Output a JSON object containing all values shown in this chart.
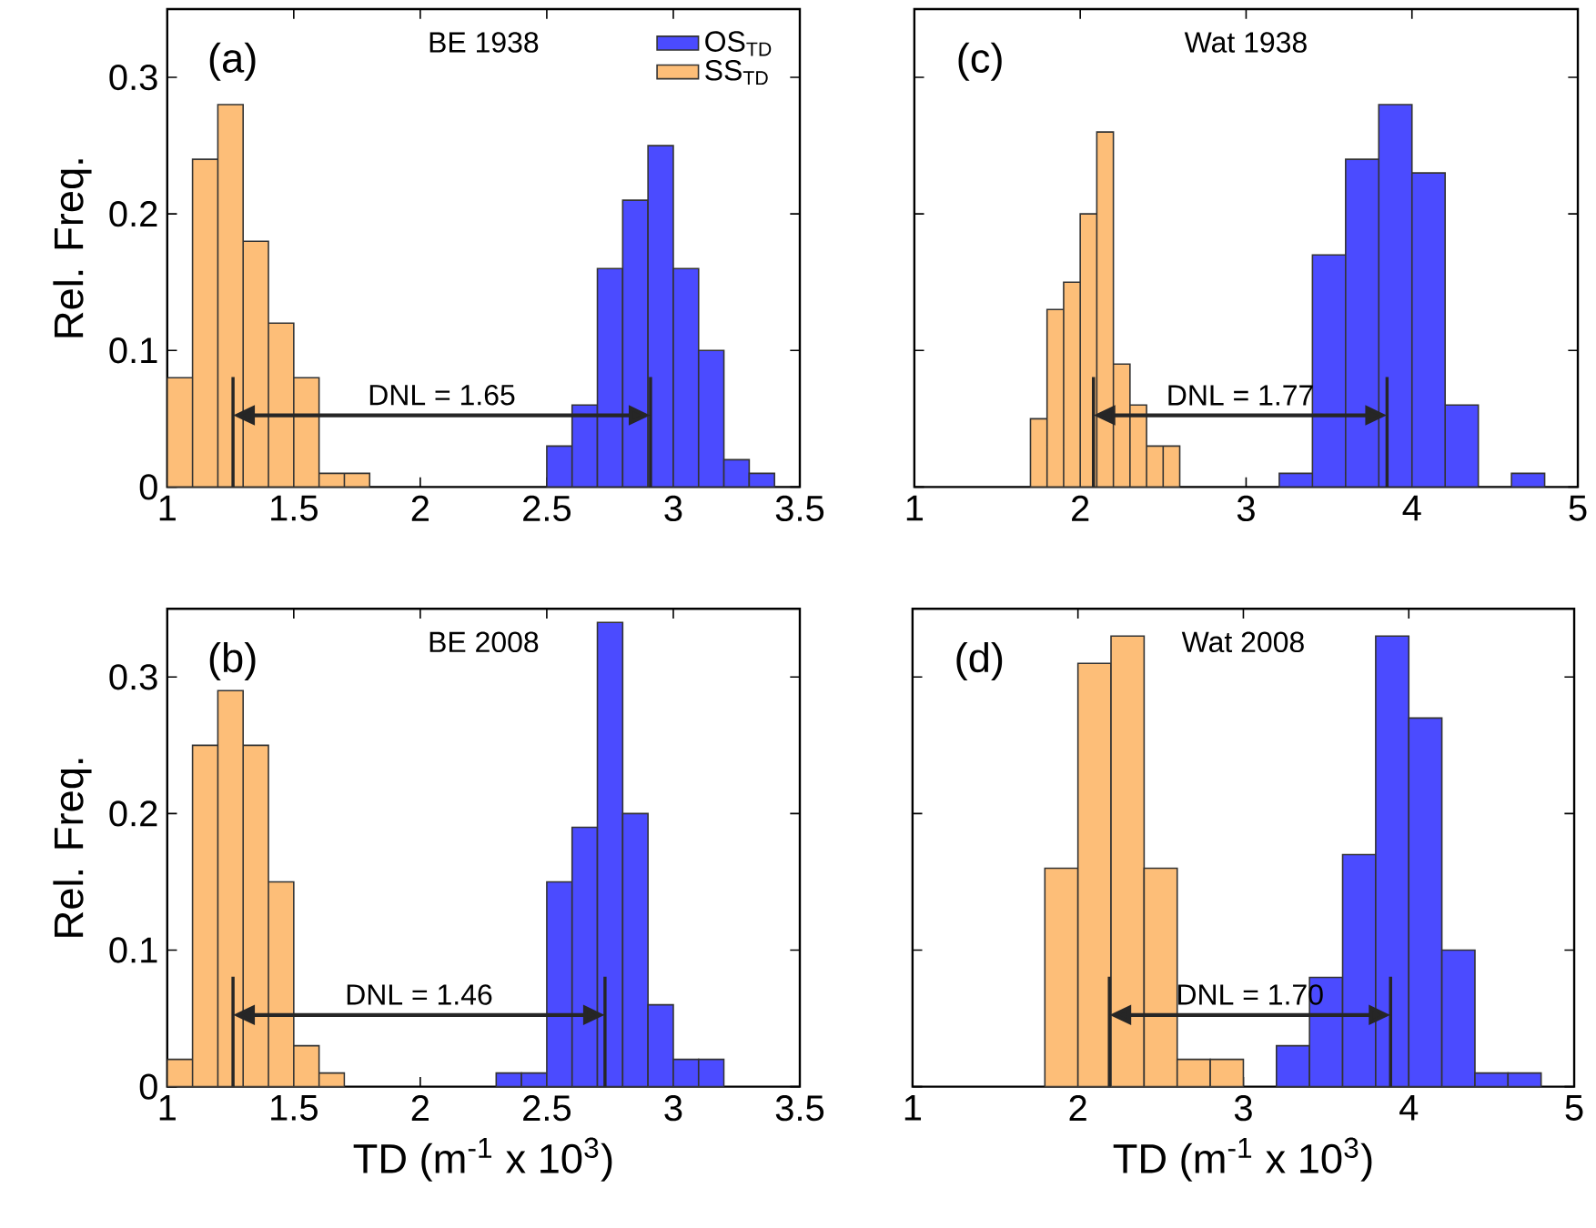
{
  "chart_data": [
    {
      "type": "bar",
      "title": "BE 1938",
      "ylabel": "Rel. Freq.",
      "annotations": [
        "(a)",
        "DNL = 1.65"
      ],
      "series": [
        {
          "name": "OS$_{TD}$",
          "color": "#4b4bff",
          "x": [
            2.55,
            2.65,
            2.75,
            2.85,
            2.95,
            3.05,
            3.15,
            3.25,
            3.35
          ],
          "values": [
            0.03,
            0.06,
            0.16,
            0.21,
            0.25,
            0.16,
            0.1,
            0.02,
            0.01
          ]
        },
        {
          "name": "SS$_{TD}$",
          "color": "#fdbe78",
          "x": [
            1.05,
            1.15,
            1.25,
            1.35,
            1.45,
            1.55,
            1.65,
            1.75
          ],
          "values": [
            0.08,
            0.24,
            0.28,
            0.18,
            0.12,
            0.08,
            0.01,
            0.01
          ]
        }
      ],
      "ref_lines": [
        {
          "axis": "x",
          "value": 1.26
        },
        {
          "axis": "x",
          "value": 2.91
        }
      ],
      "xlim": [
        1,
        3.5
      ],
      "ylim": [
        0,
        0.35
      ],
      "xticks": [
        1,
        1.5,
        2,
        2.5,
        3,
        3.5
      ],
      "yticks": [
        0,
        0.1,
        0.2,
        0.3
      ],
      "legend": "top right"
    },
    {
      "type": "bar",
      "title": "Wat 1938",
      "annotations": [
        "(c)",
        "DNL = 1.77"
      ],
      "series": [
        {
          "color": "#4b4bff",
          "x": [
            3.3,
            3.5,
            3.7,
            3.9,
            4.1,
            4.3,
            4.5,
            4.7
          ],
          "values": [
            0.01,
            0.17,
            0.24,
            0.28,
            0.23,
            0.06,
            0,
            0.01
          ]
        },
        {
          "color": "#fdbe78",
          "x": [
            1.75,
            1.85,
            1.95,
            2.05,
            2.15,
            2.25,
            2.35,
            2.45,
            2.55
          ],
          "values": [
            0.05,
            0.13,
            0.15,
            0.2,
            0.26,
            0.09,
            0.06,
            0.03,
            0.03
          ]
        }
      ],
      "ref_lines": [
        {
          "axis": "x",
          "value": 2.08
        },
        {
          "axis": "x",
          "value": 3.85
        }
      ],
      "xlim": [
        1,
        5
      ],
      "ylim": [
        0,
        0.35
      ],
      "xticks": [
        1,
        2,
        3,
        4,
        5
      ],
      "yticks": [
        0,
        0.1,
        0.2,
        0.3
      ],
      "tick_labels": "x"
    },
    {
      "type": "bar",
      "title": "BE 2008",
      "ylabel": "Rel. Freq.",
      "xlabel": "TD (m$^{-1}$ x 10$^{3}$)",
      "annotations": [
        "(b)",
        "DNL = 1.46"
      ],
      "series": [
        {
          "color": "#4b4bff",
          "x": [
            2.35,
            2.45,
            2.55,
            2.65,
            2.75,
            2.85,
            2.95,
            3.05,
            3.15
          ],
          "values": [
            0.01,
            0.01,
            0.15,
            0.19,
            0.34,
            0.2,
            0.06,
            0.02,
            0.02
          ]
        },
        {
          "color": "#fdbe78",
          "x": [
            1.05,
            1.15,
            1.25,
            1.35,
            1.45,
            1.55,
            1.65
          ],
          "values": [
            0.02,
            0.25,
            0.29,
            0.25,
            0.15,
            0.03,
            0.01
          ]
        }
      ],
      "ref_lines": [
        {
          "axis": "x",
          "value": 1.26
        },
        {
          "axis": "x",
          "value": 2.73
        }
      ],
      "xlim": [
        1,
        3.5
      ],
      "ylim": [
        0,
        0.35
      ],
      "xticks": [
        1,
        1.5,
        2,
        2.5,
        3,
        3.5
      ],
      "yticks": [
        0,
        0.1,
        0.2,
        0.3
      ]
    },
    {
      "type": "bar",
      "title": "Wat 2008",
      "xlabel": "TD (m$^{-1}$ x 10$^{3}$)",
      "annotations": [
        "(d)",
        "DNL = 1.70"
      ],
      "series": [
        {
          "color": "#4b4bff",
          "x": [
            3.3,
            3.5,
            3.7,
            3.9,
            4.1,
            4.3,
            4.5,
            4.7
          ],
          "values": [
            0.03,
            0.08,
            0.17,
            0.33,
            0.27,
            0.1,
            0.01,
            0.01
          ]
        },
        {
          "color": "#fdbe78",
          "x": [
            1.9,
            2.1,
            2.3,
            2.5,
            2.7,
            2.9
          ],
          "values": [
            0.16,
            0.31,
            0.33,
            0.16,
            0.02,
            0.02
          ]
        }
      ],
      "ref_lines": [
        {
          "axis": "x",
          "value": 2.19
        },
        {
          "axis": "x",
          "value": 3.89
        }
      ],
      "xlim": [
        1,
        5
      ],
      "ylim": [
        0,
        0.35
      ],
      "xticks": [
        1,
        2,
        3,
        4,
        5
      ],
      "yticks": [
        0,
        0.1,
        0.2,
        0.3
      ],
      "tick_labels": "x"
    }
  ]
}
